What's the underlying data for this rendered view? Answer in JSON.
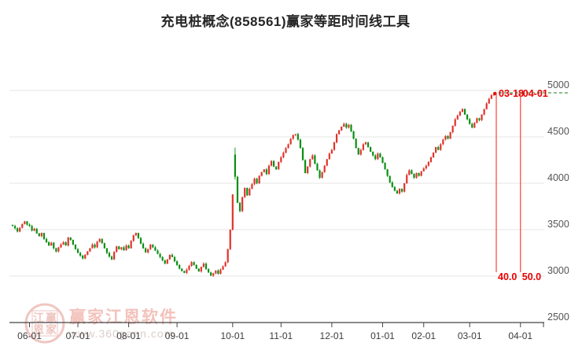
{
  "window": {
    "title": "充电桩概念(858561)赢家等距时间线工具"
  },
  "watermark": {
    "brand": "赢家江恩软件",
    "url": "www.360gann.com",
    "seal_top_left": "江",
    "seal_top_right": "赢",
    "seal_bottom_left": "恩",
    "seal_bottom_right": "家"
  },
  "chart_data": {
    "type": "candlestick",
    "title": "充电桩概念(858561)赢家等距时间线工具",
    "ylim": [
      2500,
      5000
    ],
    "y_ticks": [
      5000,
      4500,
      4000,
      3500,
      3000,
      2500
    ],
    "grid": true,
    "up_color": "#e0332a",
    "down_color": "#0a8f14",
    "x_ticks": [
      {
        "label": "06-01",
        "index": 7
      },
      {
        "label": "07-01",
        "index": 27
      },
      {
        "label": "08-01",
        "index": 48
      },
      {
        "label": "09-01",
        "index": 68
      },
      {
        "label": "10-01",
        "index": 91
      },
      {
        "label": "11-01",
        "index": 111
      },
      {
        "label": "12-01",
        "index": 132
      },
      {
        "label": "01-01",
        "index": 153
      },
      {
        "label": "02-01",
        "index": 170
      },
      {
        "label": "03-01",
        "index": 189
      },
      {
        "label": "04-01",
        "index": 210
      }
    ],
    "first_open": 3552,
    "closes": [
      3540,
      3515,
      3480,
      3520,
      3560,
      3590,
      3555,
      3540,
      3490,
      3510,
      3460,
      3430,
      3465,
      3400,
      3365,
      3330,
      3360,
      3300,
      3265,
      3310,
      3340,
      3365,
      3330,
      3415,
      3390,
      3340,
      3290,
      3250,
      3220,
      3190,
      3230,
      3265,
      3300,
      3340,
      3310,
      3370,
      3400,
      3355,
      3300,
      3250,
      3210,
      3180,
      3260,
      3320,
      3290,
      3310,
      3280,
      3330,
      3300,
      3380,
      3440,
      3465,
      3410,
      3350,
      3300,
      3255,
      3290,
      3340,
      3310,
      3275,
      3240,
      3205,
      3170,
      3135,
      3180,
      3230,
      3205,
      3160,
      3120,
      3080,
      3055,
      3035,
      3070,
      3110,
      3150,
      3120,
      3080,
      3050,
      3100,
      3135,
      3075,
      3040,
      3005,
      3030,
      3060,
      3025,
      3070,
      3105,
      3150,
      3290,
      3500,
      3880,
      4070,
      3790,
      3700,
      3850,
      3950,
      3870,
      3940,
      3990,
      4050,
      4000,
      4080,
      4120,
      4150,
      4100,
      4190,
      4240,
      4180,
      4150,
      4230,
      4280,
      4330,
      4380,
      4420,
      4480,
      4520,
      4530,
      4470,
      4380,
      4250,
      4110,
      4180,
      4260,
      4300,
      4210,
      4140,
      4060,
      4120,
      4190,
      4260,
      4320,
      4360,
      4440,
      4530,
      4570,
      4610,
      4640,
      4600,
      4630,
      4560,
      4480,
      4380,
      4310,
      4360,
      4420,
      4440,
      4390,
      4340,
      4300,
      4260,
      4320,
      4280,
      4220,
      4150,
      4080,
      4010,
      3960,
      3920,
      3890,
      3940,
      3910,
      4000,
      4090,
      4140,
      4100,
      4060,
      4110,
      4080,
      4130,
      4160,
      4190,
      4230,
      4280,
      4330,
      4390,
      4360,
      4420,
      4470,
      4510,
      4480,
      4550,
      4620,
      4690,
      4730,
      4770,
      4800,
      4740,
      4690,
      4640,
      4600,
      4650,
      4700,
      4680,
      4740,
      4800,
      4860,
      4910,
      4950,
      4960
    ],
    "spike_candle": {
      "index": 92,
      "open": 4310,
      "high": 4385,
      "low": 4040,
      "close": 4070
    },
    "annotations": {
      "hline": {
        "value": 4975,
        "color": "#1a7a1a",
        "style": "dashed"
      },
      "vlines": [
        {
          "index": 200,
          "date_label": "03-18",
          "measure_label": "40.0"
        },
        {
          "index": 210,
          "date_label": "04-01",
          "measure_label": "50.0"
        }
      ],
      "line_color": "#ff4040",
      "text_color": "#e80000"
    }
  }
}
